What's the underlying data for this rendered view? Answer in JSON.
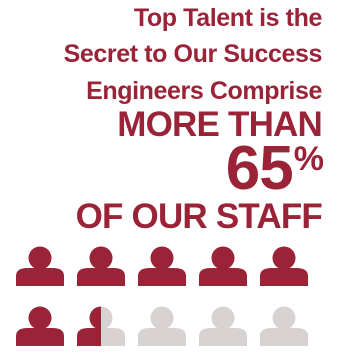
{
  "headline": {
    "line1": "Top Talent is the",
    "line2": "Secret to Our Success",
    "line3": "Engineers Comprise",
    "line4": "MORE THAN",
    "number": "65",
    "percent_sign": "%",
    "line6": "OF OUR STAFF"
  },
  "colors": {
    "accent": "#9a2338",
    "muted": "#d9d2d2"
  },
  "pictogram": {
    "total_people": 10,
    "filled_fraction": 0.65,
    "icon": "person-icon"
  }
}
